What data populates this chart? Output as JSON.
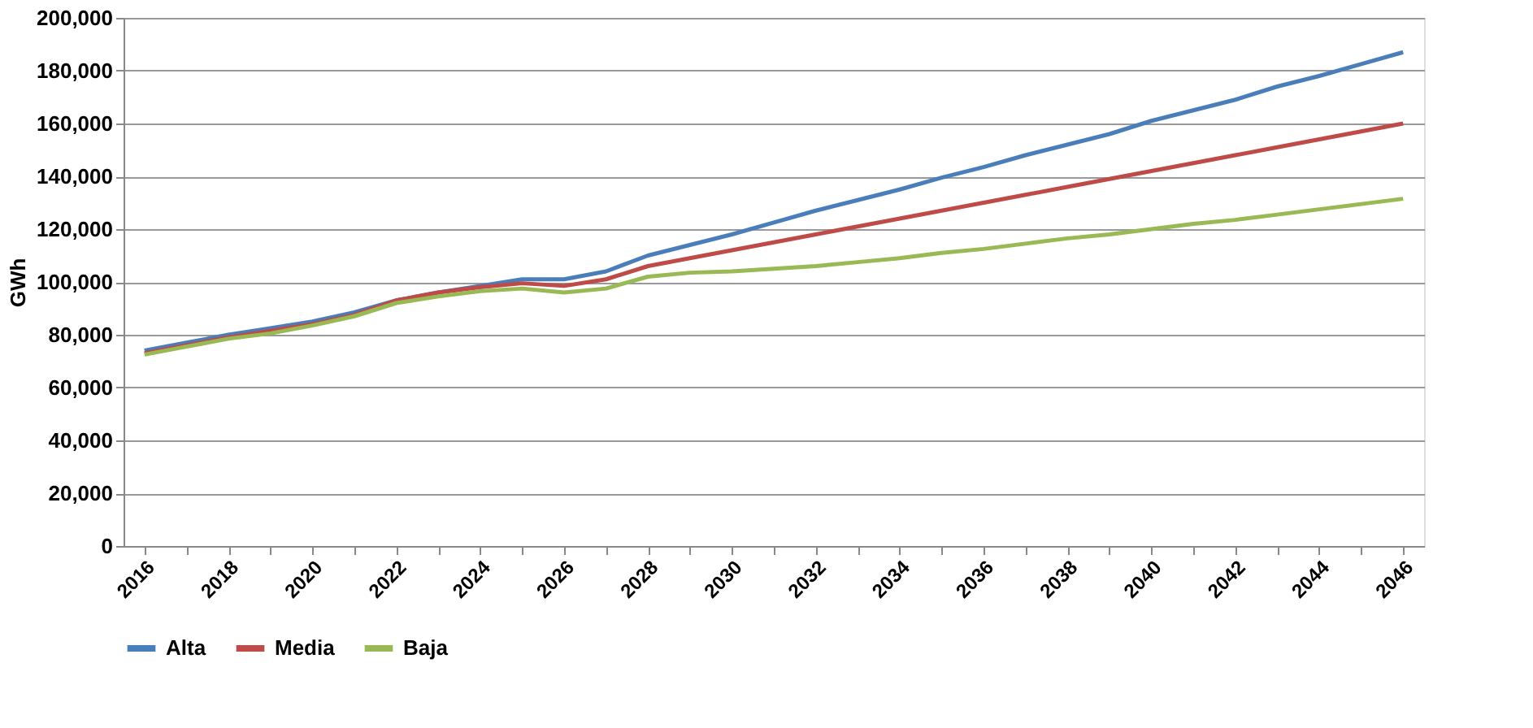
{
  "chart_data": {
    "type": "line",
    "ylabel": "GWh",
    "categories": [
      "2016",
      null,
      "2018",
      null,
      "2020",
      null,
      "2022",
      null,
      "2024",
      null,
      "2026",
      null,
      "2028",
      null,
      "2030",
      null,
      "2032",
      null,
      "2034",
      null,
      "2036",
      null,
      "2038",
      null,
      "2040",
      null,
      "2042",
      null,
      "2044",
      null,
      "2046"
    ],
    "series": [
      {
        "name": "Alta",
        "color": "#4a7ebb",
        "values": [
          74000,
          77000,
          80000,
          82500,
          85000,
          88500,
          93000,
          96000,
          98500,
          101000,
          101000,
          104000,
          110000,
          114000,
          118000,
          122500,
          127000,
          131000,
          135000,
          139500,
          143500,
          148000,
          152000,
          156000,
          161000,
          165000,
          169000,
          174000,
          178000,
          182500,
          187000
        ]
      },
      {
        "name": "Media",
        "color": "#be4b48",
        "values": [
          73000,
          76000,
          79000,
          81500,
          84000,
          87500,
          93000,
          96000,
          98000,
          99500,
          98500,
          101000,
          106000,
          109000,
          112000,
          115000,
          118000,
          121000,
          124000,
          127000,
          130000,
          133000,
          136000,
          139000,
          142000,
          145000,
          148000,
          151000,
          154000,
          157000,
          160000
        ]
      },
      {
        "name": "Baja",
        "color": "#98b954",
        "values": [
          72500,
          75500,
          78500,
          80500,
          83500,
          87000,
          92000,
          94500,
          96500,
          97500,
          96000,
          97500,
          102000,
          103500,
          104000,
          105000,
          106000,
          107500,
          109000,
          111000,
          112500,
          114500,
          116500,
          118000,
          120000,
          122000,
          123500,
          125500,
          127500,
          129500,
          131500
        ]
      }
    ],
    "ylim": [
      0,
      200000
    ],
    "yticks": [
      {
        "value": 0,
        "label": "0"
      },
      {
        "value": 20000,
        "label": "20,000"
      },
      {
        "value": 40000,
        "label": "40,000"
      },
      {
        "value": 60000,
        "label": "60,000"
      },
      {
        "value": 80000,
        "label": "80,000"
      },
      {
        "value": 100000,
        "label": "100,000"
      },
      {
        "value": 120000,
        "label": "120,000"
      },
      {
        "value": 140000,
        "label": "140,000"
      },
      {
        "value": 160000,
        "label": "160,000"
      },
      {
        "value": 180000,
        "label": "180,000"
      },
      {
        "value": 200000,
        "label": "200,000"
      }
    ],
    "grid": "y",
    "legend": "bottom",
    "marker": "none",
    "line_style": "solid"
  }
}
